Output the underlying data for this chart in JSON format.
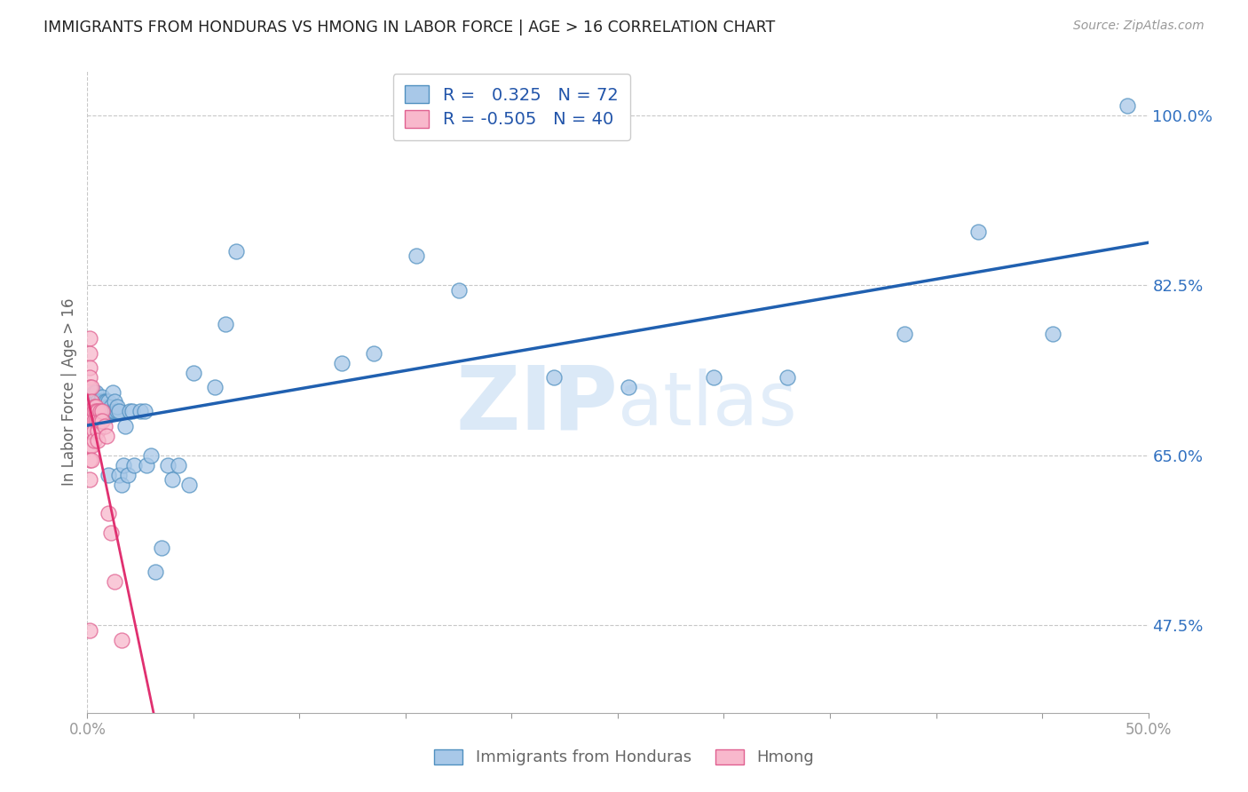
{
  "title": "IMMIGRANTS FROM HONDURAS VS HMONG IN LABOR FORCE | AGE > 16 CORRELATION CHART",
  "source": "Source: ZipAtlas.com",
  "ylabel": "In Labor Force | Age > 16",
  "xlim": [
    0.0,
    0.5
  ],
  "ylim": [
    0.385,
    1.045
  ],
  "ytick_labels_right": [
    "47.5%",
    "65.0%",
    "82.5%",
    "100.0%"
  ],
  "ytick_values_right": [
    0.475,
    0.65,
    0.825,
    1.0
  ],
  "legend_r_blue": "0.325",
  "legend_n_blue": "72",
  "legend_r_pink": "-0.505",
  "legend_n_pink": "40",
  "blue_marker_color": "#a8c8e8",
  "blue_edge_color": "#5090c0",
  "pink_marker_color": "#f8b8cc",
  "pink_edge_color": "#e06090",
  "blue_line_color": "#2060b0",
  "pink_line_color": "#e03070",
  "watermark": "ZIPatlas",
  "background_color": "#ffffff",
  "grid_color": "#c8c8c8",
  "honduras_x": [
    0.001,
    0.002,
    0.002,
    0.003,
    0.003,
    0.003,
    0.004,
    0.004,
    0.004,
    0.005,
    0.005,
    0.005,
    0.006,
    0.006,
    0.006,
    0.007,
    0.007,
    0.007,
    0.007,
    0.008,
    0.008,
    0.008,
    0.009,
    0.009,
    0.009,
    0.01,
    0.01,
    0.01,
    0.01,
    0.011,
    0.011,
    0.012,
    0.012,
    0.013,
    0.013,
    0.014,
    0.014,
    0.015,
    0.015,
    0.016,
    0.017,
    0.018,
    0.019,
    0.02,
    0.021,
    0.022,
    0.025,
    0.027,
    0.028,
    0.03,
    0.032,
    0.035,
    0.038,
    0.04,
    0.043,
    0.048,
    0.05,
    0.06,
    0.065,
    0.07,
    0.12,
    0.135,
    0.155,
    0.175,
    0.22,
    0.255,
    0.295,
    0.33,
    0.385,
    0.42,
    0.455,
    0.49
  ],
  "honduras_y": [
    0.678,
    0.695,
    0.712,
    0.695,
    0.705,
    0.715,
    0.695,
    0.705,
    0.715,
    0.695,
    0.7,
    0.705,
    0.695,
    0.7,
    0.705,
    0.695,
    0.7,
    0.705,
    0.71,
    0.695,
    0.7,
    0.705,
    0.69,
    0.7,
    0.705,
    0.63,
    0.695,
    0.7,
    0.705,
    0.695,
    0.7,
    0.695,
    0.715,
    0.695,
    0.705,
    0.695,
    0.7,
    0.695,
    0.63,
    0.62,
    0.64,
    0.68,
    0.63,
    0.695,
    0.695,
    0.64,
    0.695,
    0.695,
    0.64,
    0.65,
    0.53,
    0.555,
    0.64,
    0.625,
    0.64,
    0.62,
    0.735,
    0.72,
    0.785,
    0.86,
    0.745,
    0.755,
    0.855,
    0.82,
    0.73,
    0.72,
    0.73,
    0.73,
    0.775,
    0.88,
    0.775,
    1.01
  ],
  "hmong_x": [
    0.001,
    0.001,
    0.001,
    0.001,
    0.001,
    0.001,
    0.001,
    0.001,
    0.001,
    0.001,
    0.001,
    0.002,
    0.002,
    0.002,
    0.002,
    0.002,
    0.002,
    0.002,
    0.003,
    0.003,
    0.003,
    0.003,
    0.003,
    0.004,
    0.004,
    0.004,
    0.005,
    0.005,
    0.005,
    0.005,
    0.006,
    0.006,
    0.007,
    0.007,
    0.008,
    0.009,
    0.01,
    0.011,
    0.013,
    0.016
  ],
  "hmong_y": [
    0.77,
    0.755,
    0.74,
    0.73,
    0.72,
    0.695,
    0.675,
    0.66,
    0.645,
    0.625,
    0.47,
    0.72,
    0.705,
    0.695,
    0.685,
    0.675,
    0.66,
    0.645,
    0.7,
    0.695,
    0.685,
    0.675,
    0.665,
    0.7,
    0.695,
    0.685,
    0.695,
    0.685,
    0.675,
    0.665,
    0.695,
    0.685,
    0.695,
    0.685,
    0.68,
    0.67,
    0.59,
    0.57,
    0.52,
    0.46
  ]
}
